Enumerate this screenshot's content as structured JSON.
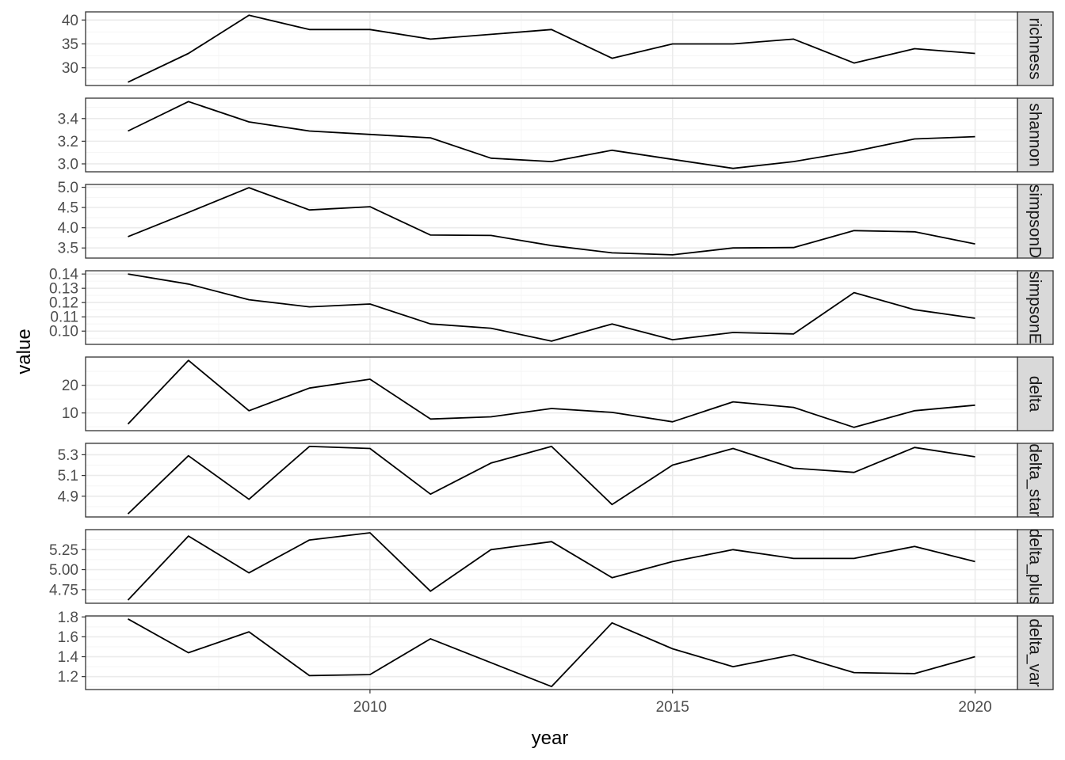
{
  "chart_data": {
    "type": "line",
    "xlabel": "year",
    "ylabel": "value",
    "x": [
      2006,
      2007,
      2008,
      2009,
      2010,
      2011,
      2012,
      2013,
      2014,
      2015,
      2016,
      2017,
      2018,
      2019,
      2020
    ],
    "xlim": [
      2006,
      2020
    ],
    "x_ticks": [
      2010,
      2015,
      2020
    ],
    "x_tick_labels": [
      "2010",
      "2015",
      "2020"
    ],
    "grid": true,
    "colors": {
      "line": "#000000",
      "panel_border": "#333333",
      "grid_major": "#ebebeb",
      "grid_minor": "#f5f5f5",
      "strip_fill": "#d9d9d9",
      "tick_text": "#4d4d4d"
    },
    "panels": [
      {
        "strip": "richness",
        "values": [
          27,
          33,
          41,
          38,
          38,
          36,
          37,
          38,
          32,
          35,
          35,
          36,
          31,
          34,
          33
        ],
        "ylim": [
          26.3,
          41.7
        ],
        "y_ticks": [
          30,
          35,
          40
        ],
        "y_tick_labels": [
          "30",
          "35",
          "40"
        ]
      },
      {
        "strip": "shannon",
        "values": [
          3.29,
          3.55,
          3.37,
          3.29,
          3.26,
          3.23,
          3.05,
          3.02,
          3.12,
          3.04,
          2.96,
          3.02,
          3.11,
          3.22,
          3.24
        ],
        "ylim": [
          2.93,
          3.58
        ],
        "y_ticks": [
          3.0,
          3.2,
          3.4
        ],
        "y_tick_labels": [
          "3.0",
          "3.2",
          "3.4"
        ]
      },
      {
        "strip": "simpsonD",
        "values": [
          3.78,
          4.38,
          4.99,
          4.44,
          4.52,
          3.82,
          3.81,
          3.56,
          3.38,
          3.33,
          3.5,
          3.51,
          3.93,
          3.9,
          3.6
        ],
        "ylim": [
          3.25,
          5.07
        ],
        "y_ticks": [
          3.5,
          4.0,
          4.5,
          5.0
        ],
        "y_tick_labels": [
          "3.5",
          "4.0",
          "4.5",
          "5.0"
        ]
      },
      {
        "strip": "simpsonE",
        "values": [
          0.14,
          0.133,
          0.122,
          0.117,
          0.119,
          0.105,
          0.102,
          0.093,
          0.105,
          0.094,
          0.099,
          0.098,
          0.127,
          0.115,
          0.109
        ],
        "ylim": [
          0.0907,
          0.1423
        ],
        "y_ticks": [
          0.1,
          0.11,
          0.12,
          0.13,
          0.14
        ],
        "y_tick_labels": [
          "0.10",
          "0.11",
          "0.12",
          "0.13",
          "0.14"
        ]
      },
      {
        "strip": "delta",
        "values": [
          6.0,
          29.0,
          10.8,
          19.0,
          22.2,
          7.8,
          8.6,
          11.6,
          10.2,
          6.8,
          14.0,
          12.0,
          4.8,
          10.8,
          12.8
        ],
        "ylim": [
          3.6,
          30.2
        ],
        "y_ticks": [
          10,
          20
        ],
        "y_tick_labels": [
          "10",
          "20"
        ]
      },
      {
        "strip": "delta_star",
        "values": [
          4.73,
          5.29,
          4.87,
          5.38,
          5.36,
          4.92,
          5.22,
          5.38,
          4.82,
          5.2,
          5.36,
          5.17,
          5.13,
          5.37,
          5.28
        ],
        "ylim": [
          4.7,
          5.41
        ],
        "y_ticks": [
          4.9,
          5.1,
          5.3
        ],
        "y_tick_labels": [
          "4.9",
          "5.1",
          "5.3"
        ]
      },
      {
        "strip": "delta_plus",
        "values": [
          4.62,
          5.42,
          4.96,
          5.37,
          5.46,
          4.73,
          5.25,
          5.35,
          4.9,
          5.1,
          5.25,
          5.14,
          5.14,
          5.29,
          5.1
        ],
        "ylim": [
          4.58,
          5.5
        ],
        "y_ticks": [
          4.75,
          5.0,
          5.25
        ],
        "y_tick_labels": [
          "4.75",
          "5.00",
          "5.25"
        ]
      },
      {
        "strip": "delta_var",
        "values": [
          1.78,
          1.44,
          1.65,
          1.21,
          1.22,
          1.58,
          1.34,
          1.1,
          1.74,
          1.48,
          1.3,
          1.42,
          1.24,
          1.23,
          1.4
        ],
        "ylim": [
          1.07,
          1.81
        ],
        "y_ticks": [
          1.2,
          1.4,
          1.6,
          1.8
        ],
        "y_tick_labels": [
          "1.2",
          "1.4",
          "1.6",
          "1.8"
        ]
      }
    ]
  }
}
